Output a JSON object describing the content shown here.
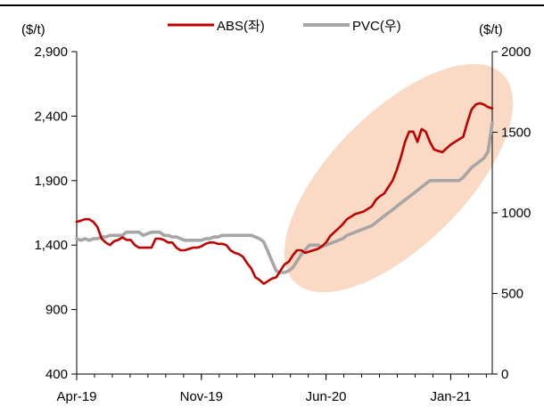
{
  "chart_data": {
    "type": "line",
    "title": "",
    "xlabel": "",
    "y_left_unit": "($/t)",
    "y_right_unit": "($/t)",
    "y_left_ticks": [
      "2,900",
      "2,400",
      "1,900",
      "1,400",
      "900",
      "400"
    ],
    "y_left_tick_values": [
      2900,
      2400,
      1900,
      1400,
      900,
      400
    ],
    "y_left_range": [
      400,
      2900
    ],
    "y_right_ticks": [
      "2000",
      "1500",
      "1000",
      "500",
      "0"
    ],
    "y_right_tick_values": [
      2000,
      1500,
      1000,
      500,
      0
    ],
    "y_right_range": [
      0,
      2000
    ],
    "x_ticks": [
      "Apr-19",
      "Nov-19",
      "Jun-20",
      "Jan-21"
    ],
    "x_tick_positions": [
      0,
      30,
      60,
      90
    ],
    "x_range": [
      0,
      100
    ],
    "legend_position": "top-center",
    "colors": {
      "abs": "#c00000",
      "pvc": "#a6a6a6",
      "highlight": "#f9d3bb"
    },
    "series": [
      {
        "name": "ABS(좌)",
        "axis": "left",
        "color": "#c00000",
        "x": [
          0,
          1,
          2,
          3,
          4,
          5,
          6,
          7,
          8,
          9,
          10,
          11,
          12,
          13,
          14,
          15,
          16,
          17,
          18,
          19,
          20,
          21,
          22,
          23,
          24,
          25,
          26,
          27,
          28,
          29,
          30,
          31,
          32,
          33,
          34,
          35,
          36,
          37,
          38,
          39,
          40,
          41,
          42,
          43,
          44,
          45,
          46,
          47,
          48,
          49,
          50,
          51,
          52,
          53,
          54,
          55,
          56,
          57,
          58,
          59,
          60,
          61,
          62,
          63,
          64,
          65,
          66,
          67,
          68,
          69,
          70,
          71,
          72,
          73,
          74,
          75,
          76,
          77,
          78,
          79,
          80,
          81,
          82,
          83,
          84,
          85,
          86,
          87,
          88,
          89,
          90,
          91,
          92,
          93,
          94,
          95,
          96,
          97,
          98,
          99,
          100
        ],
        "values": [
          1580,
          1590,
          1600,
          1600,
          1580,
          1540,
          1450,
          1420,
          1400,
          1430,
          1440,
          1460,
          1440,
          1440,
          1400,
          1380,
          1380,
          1380,
          1380,
          1450,
          1450,
          1440,
          1420,
          1420,
          1380,
          1360,
          1360,
          1370,
          1380,
          1380,
          1390,
          1410,
          1420,
          1420,
          1410,
          1410,
          1400,
          1360,
          1340,
          1330,
          1310,
          1260,
          1220,
          1150,
          1130,
          1100,
          1120,
          1140,
          1150,
          1200,
          1250,
          1270,
          1320,
          1360,
          1360,
          1340,
          1350,
          1360,
          1370,
          1390,
          1420,
          1470,
          1500,
          1530,
          1560,
          1600,
          1620,
          1640,
          1650,
          1660,
          1680,
          1700,
          1750,
          1780,
          1800,
          1850,
          1900,
          1980,
          2080,
          2200,
          2280,
          2280,
          2200,
          2300,
          2280,
          2200,
          2140,
          2130,
          2120,
          2150,
          2180,
          2200,
          2220,
          2240,
          2350,
          2450,
          2490,
          2500,
          2490,
          2470,
          2460
        ]
      },
      {
        "name": "PVC(우)",
        "axis": "right",
        "color": "#a6a6a6",
        "x": [
          0,
          1,
          2,
          3,
          4,
          5,
          6,
          7,
          8,
          9,
          10,
          11,
          12,
          13,
          14,
          15,
          16,
          17,
          18,
          19,
          20,
          21,
          22,
          23,
          24,
          25,
          26,
          27,
          28,
          29,
          30,
          31,
          32,
          33,
          34,
          35,
          36,
          37,
          38,
          39,
          40,
          41,
          42,
          43,
          44,
          45,
          46,
          47,
          48,
          49,
          50,
          51,
          52,
          53,
          54,
          55,
          56,
          57,
          58,
          59,
          60,
          61,
          62,
          63,
          64,
          65,
          66,
          67,
          68,
          69,
          70,
          71,
          72,
          73,
          74,
          75,
          76,
          77,
          78,
          79,
          80,
          81,
          82,
          83,
          84,
          85,
          86,
          87,
          88,
          89,
          90,
          91,
          92,
          93,
          94,
          95,
          96,
          97,
          98,
          99,
          100
        ],
        "values": [
          840,
          830,
          840,
          830,
          840,
          840,
          850,
          850,
          860,
          860,
          860,
          860,
          880,
          880,
          880,
          880,
          860,
          870,
          880,
          880,
          880,
          860,
          860,
          850,
          850,
          840,
          830,
          830,
          830,
          830,
          830,
          840,
          840,
          850,
          850,
          860,
          860,
          860,
          860,
          860,
          860,
          860,
          860,
          850,
          840,
          820,
          760,
          700,
          640,
          630,
          630,
          640,
          660,
          700,
          740,
          770,
          800,
          800,
          800,
          790,
          800,
          810,
          820,
          830,
          840,
          860,
          870,
          880,
          890,
          900,
          910,
          920,
          940,
          960,
          980,
          1000,
          1020,
          1040,
          1060,
          1080,
          1100,
          1120,
          1140,
          1160,
          1180,
          1200,
          1200,
          1200,
          1200,
          1200,
          1200,
          1200,
          1200,
          1220,
          1250,
          1280,
          1300,
          1320,
          1340,
          1380,
          1560
        ]
      }
    ]
  }
}
